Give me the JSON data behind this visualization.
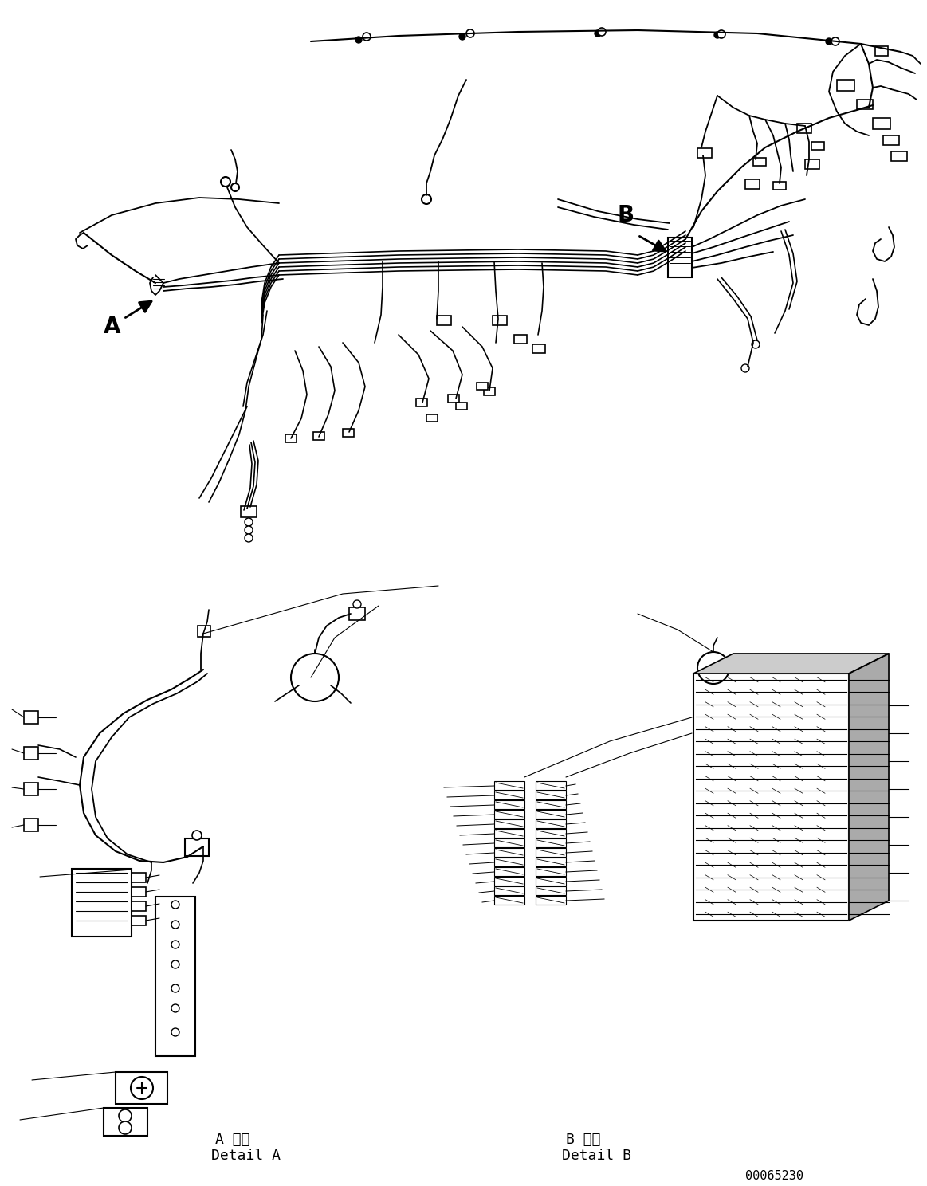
{
  "bg_color": "#ffffff",
  "line_color": "#000000",
  "fig_width": 11.63,
  "fig_height": 14.88,
  "dpi": 100,
  "label_A": "A",
  "label_B": "B",
  "detail_A_jp": "A 詳細",
  "detail_A_en": "Detail A",
  "detail_B_jp": "B 詳細",
  "detail_B_en": "Detail B",
  "part_number": "00065230",
  "font_size_label": 20,
  "font_size_detail": 13,
  "font_size_pn": 11
}
